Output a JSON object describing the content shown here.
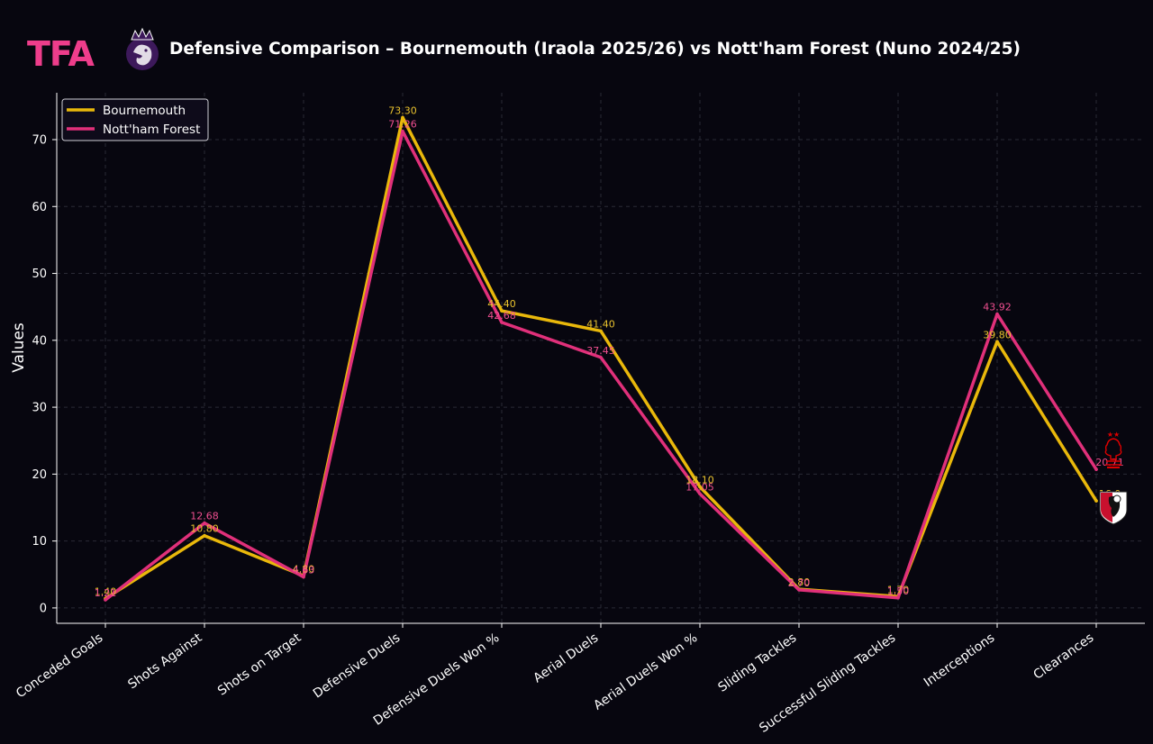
{
  "header": {
    "logo_text": "TFA",
    "title": "Defensive Comparison – Bournemouth (Iraola 2025/26) vs Nott'ham Forest (Nuno 2024/25)"
  },
  "colors": {
    "background": "#07060f",
    "bournemouth": "#e9b80b",
    "forest": "#e0307a",
    "bournemouth_label": "#e9c22e",
    "forest_label": "#ef4f90",
    "grid": "#2a2a36"
  },
  "chart_data": {
    "type": "line",
    "title": "Defensive Comparison – Bournemouth (Iraola 2025/26) vs Nott'ham Forest (Nuno 2024/25)",
    "xlabel": "",
    "ylabel": "Values",
    "ylim": [
      -2.3,
      77
    ],
    "yticks": [
      0,
      10,
      20,
      30,
      40,
      50,
      60,
      70
    ],
    "grid": true,
    "legend_position": "top-left",
    "categories": [
      "Conceded Goals",
      "Shots Against",
      "Shots on Target",
      "Defensive Duels",
      "Defensive Duels Won %",
      "Aerial Duels",
      "Aerial Duels Won %",
      "Sliding Tackles",
      "Successful Sliding Tackles",
      "Interceptions",
      "Clearances"
    ],
    "series": [
      {
        "name": "Bournemouth",
        "values": [
          1.4,
          10.8,
          4.8,
          73.3,
          44.4,
          41.4,
          18.1,
          2.8,
          1.7,
          39.8,
          16.0
        ],
        "labels": [
          "1.40",
          "10.80",
          "4.80",
          "73.30",
          "44.40",
          "41.40",
          "18.10",
          "2.80",
          "1.70",
          "39.80",
          "16.0"
        ]
      },
      {
        "name": "Nott'ham Forest",
        "values": [
          1.21,
          12.68,
          4.63,
          71.26,
          42.68,
          37.45,
          17.05,
          2.7,
          1.5,
          43.92,
          20.71
        ],
        "labels": [
          "1.21",
          "12.68",
          "4.63",
          "71.26",
          "42.68",
          "37.45",
          "17.05",
          "2.70",
          "1.50",
          "43.92",
          "20.71"
        ]
      }
    ]
  }
}
